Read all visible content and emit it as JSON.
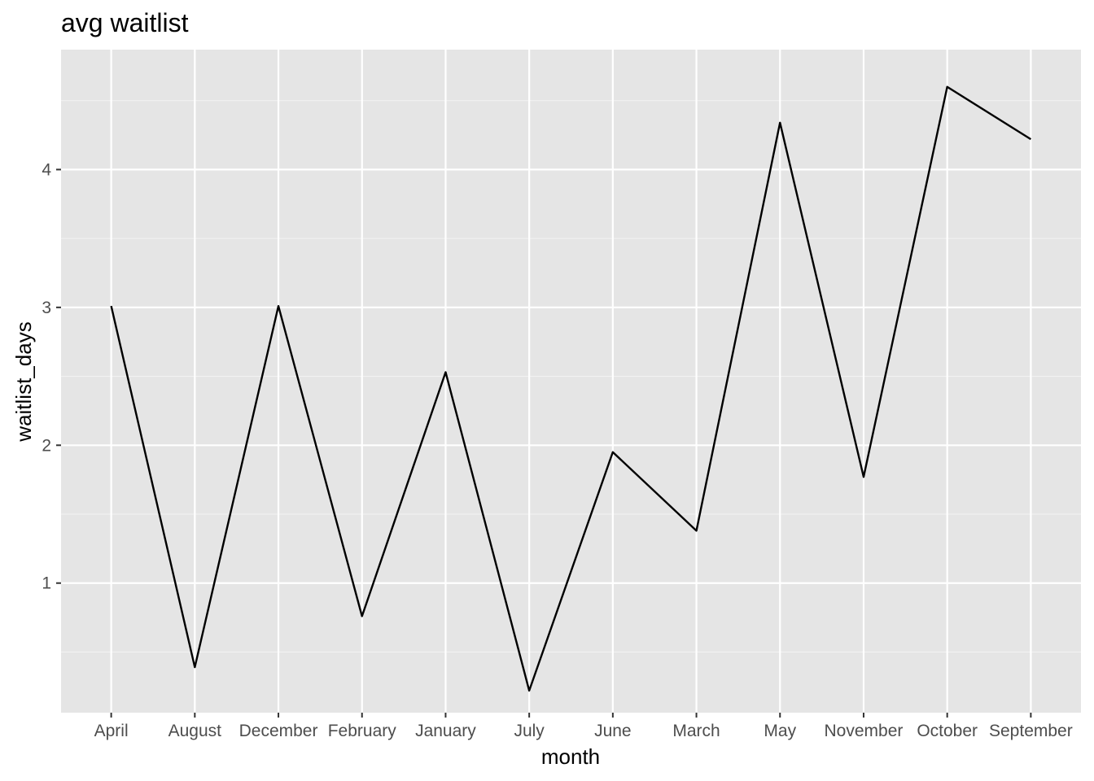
{
  "chart_data": {
    "type": "line",
    "title": "avg waitlist",
    "xlabel": "month",
    "ylabel": "waitlist_days",
    "categories": [
      "April",
      "August",
      "December",
      "February",
      "January",
      "July",
      "June",
      "March",
      "May",
      "November",
      "October",
      "September"
    ],
    "series": [
      {
        "values": [
          3.01,
          0.39,
          3.01,
          0.76,
          2.53,
          0.22,
          1.95,
          1.38,
          4.34,
          1.77,
          4.6,
          4.22
        ]
      }
    ],
    "ylim": [
      0.06,
      4.87
    ],
    "yticks": [
      1,
      2,
      3,
      4
    ],
    "y_minor_ticks": [
      0.5,
      1.5,
      2.5,
      3.5,
      4.5
    ],
    "grid": true,
    "colors": {
      "panel": "#e5e5e5",
      "grid": "#ffffff",
      "line": "#000000"
    }
  }
}
